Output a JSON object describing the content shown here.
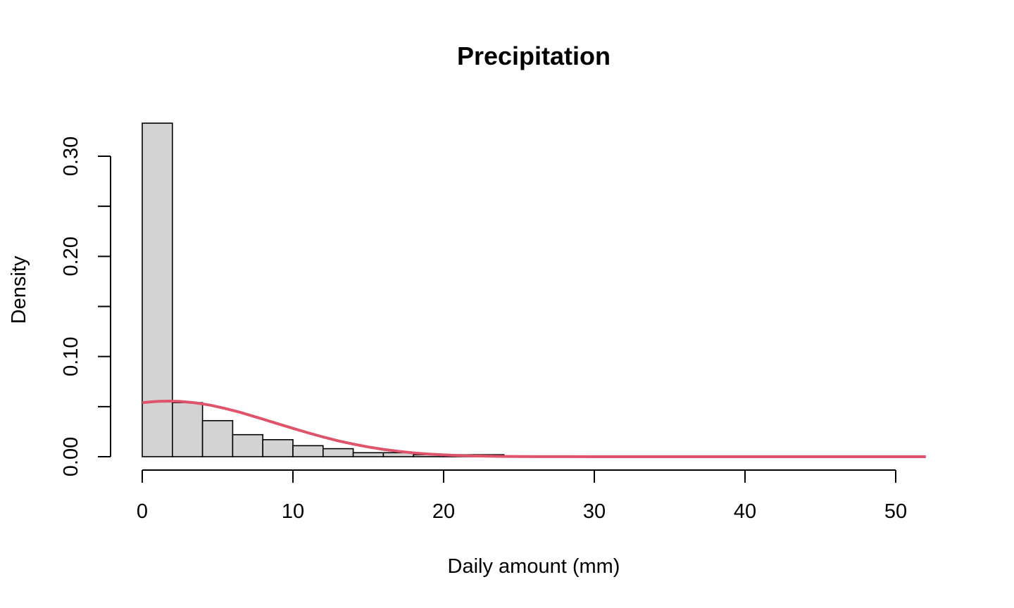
{
  "chart_data": {
    "type": "bar",
    "title": "Precipitation",
    "xlabel": "Daily amount (mm)",
    "ylabel": "Density",
    "xlim": [
      0,
      52
    ],
    "ylim": [
      0,
      0.335
    ],
    "x_ticks": [
      0,
      10,
      20,
      30,
      40,
      50
    ],
    "x_tick_labels": [
      "0",
      "10",
      "20",
      "30",
      "40",
      "50"
    ],
    "y_ticks": [
      0,
      0.05,
      0.1,
      0.15,
      0.2,
      0.25,
      0.3
    ],
    "y_tick_labels": [
      "0.00",
      "",
      "0.10",
      "",
      "0.20",
      "",
      "0.30"
    ],
    "bin_edges": [
      0,
      2,
      4,
      6,
      8,
      10,
      12,
      14,
      16,
      18,
      20,
      22,
      24
    ],
    "densities": [
      0.333,
      0.054,
      0.036,
      0.022,
      0.017,
      0.011,
      0.008,
      0.004,
      0.004,
      0.002,
      0.002,
      0.002
    ],
    "bar_fill": "#d3d3d3",
    "curve_color": "#df536b",
    "grid": false,
    "density_curve": {
      "x": [
        0,
        1,
        1.75,
        2.5,
        3.5,
        4.5,
        5.5,
        6.5,
        8,
        9,
        10,
        11,
        12,
        13,
        14,
        15,
        16,
        17,
        18,
        19,
        20,
        21,
        22,
        23,
        24,
        26,
        28,
        30,
        35,
        40,
        45,
        52
      ],
      "y": [
        0.054,
        0.0552,
        0.0555,
        0.0552,
        0.0538,
        0.0515,
        0.0482,
        0.0443,
        0.0375,
        0.0329,
        0.0283,
        0.0239,
        0.0197,
        0.0159,
        0.0126,
        0.0097,
        0.0073,
        0.0054,
        0.0038,
        0.0027,
        0.0018,
        0.0012,
        0.0008,
        0.0005,
        0.0003,
        0.0001,
        4e-05,
        1e-05,
        0,
        0,
        0,
        0
      ]
    }
  }
}
